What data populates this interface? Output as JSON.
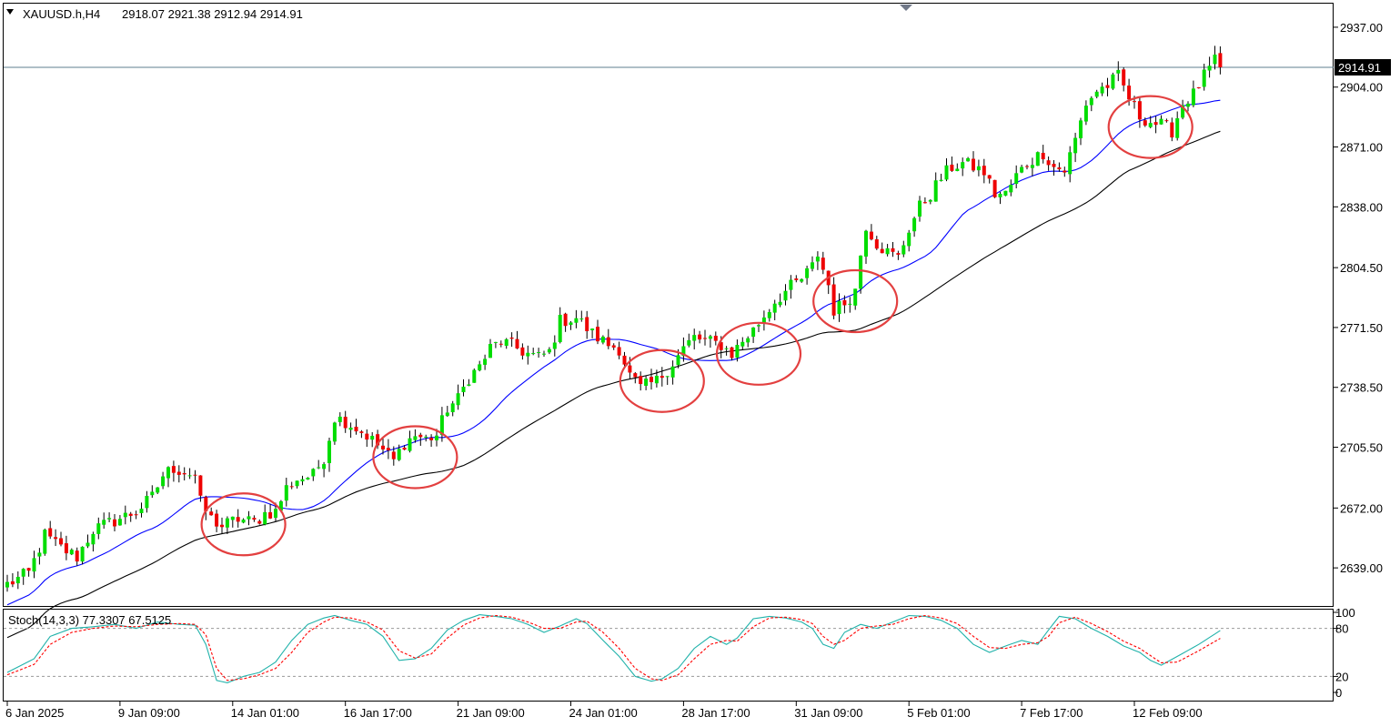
{
  "chart_data": {
    "type": "candlestick",
    "title": "XAUUSD.h,H4",
    "ohlc_label": "2918.07 2921.38 2912.94 2914.91",
    "current_price": 2914.91,
    "current_price_label": "2914.91",
    "y_axis": {
      "range": [
        2618,
        2950
      ],
      "ticks": [
        {
          "value": 2937.0,
          "label": "2937.00"
        },
        {
          "value": 2904.0,
          "label": "2904.00"
        },
        {
          "value": 2871.0,
          "label": "2871.00"
        },
        {
          "value": 2838.0,
          "label": "2838.00"
        },
        {
          "value": 2804.5,
          "label": "2804.50"
        },
        {
          "value": 2771.5,
          "label": "2771.50"
        },
        {
          "value": 2738.5,
          "label": "2738.50"
        },
        {
          "value": 2705.5,
          "label": "2705.50"
        },
        {
          "value": 2672.0,
          "label": "2672.00"
        },
        {
          "value": 2639.0,
          "label": "2639.00"
        }
      ]
    },
    "x_axis": {
      "ticks": [
        {
          "bar": 0,
          "label": "6 Jan 2025"
        },
        {
          "bar": 21,
          "label": "9 Jan 09:00"
        },
        {
          "bar": 42,
          "label": "14 Jan 01:00"
        },
        {
          "bar": 63,
          "label": "16 Jan 17:00"
        },
        {
          "bar": 84,
          "label": "21 Jan 09:00"
        },
        {
          "bar": 105,
          "label": "24 Jan 01:00"
        },
        {
          "bar": 126,
          "label": "28 Jan 17:00"
        },
        {
          "bar": 147,
          "label": "31 Jan 09:00"
        },
        {
          "bar": 168,
          "label": "5 Feb 01:00"
        },
        {
          "bar": 189,
          "label": "7 Feb 17:00"
        },
        {
          "bar": 210,
          "label": "12 Feb 09:00"
        }
      ]
    },
    "price_path": [
      [
        0,
        2630
      ],
      [
        4,
        2636
      ],
      [
        7,
        2657
      ],
      [
        10,
        2650
      ],
      [
        13,
        2645
      ],
      [
        16,
        2660
      ],
      [
        20,
        2665
      ],
      [
        24,
        2670
      ],
      [
        27,
        2678
      ],
      [
        29,
        2690
      ],
      [
        31,
        2694
      ],
      [
        35,
        2690
      ],
      [
        36,
        2675
      ],
      [
        38,
        2666
      ],
      [
        40,
        2662
      ],
      [
        43,
        2666
      ],
      [
        46,
        2664
      ],
      [
        48,
        2669
      ],
      [
        50,
        2670
      ],
      [
        52,
        2683
      ],
      [
        54,
        2688
      ],
      [
        57,
        2690
      ],
      [
        59,
        2700
      ],
      [
        61,
        2722
      ],
      [
        63,
        2720
      ],
      [
        65,
        2716
      ],
      [
        67,
        2712
      ],
      [
        70,
        2704
      ],
      [
        72,
        2698
      ],
      [
        74,
        2708
      ],
      [
        76,
        2712
      ],
      [
        78,
        2710
      ],
      [
        80,
        2712
      ],
      [
        82,
        2727
      ],
      [
        84,
        2732
      ],
      [
        86,
        2744
      ],
      [
        88,
        2750
      ],
      [
        90,
        2760
      ],
      [
        92,
        2764
      ],
      [
        95,
        2760
      ],
      [
        97,
        2757
      ],
      [
        99,
        2755
      ],
      [
        101,
        2758
      ],
      [
        103,
        2775
      ],
      [
        106,
        2777
      ],
      [
        109,
        2768
      ],
      [
        112,
        2762
      ],
      [
        114,
        2760
      ],
      [
        116,
        2745
      ],
      [
        118,
        2738
      ],
      [
        121,
        2742
      ],
      [
        124,
        2752
      ],
      [
        126,
        2760
      ],
      [
        128,
        2766
      ],
      [
        130,
        2764
      ],
      [
        133,
        2762
      ],
      [
        135,
        2757
      ],
      [
        137,
        2764
      ],
      [
        139,
        2770
      ],
      [
        141,
        2778
      ],
      [
        143,
        2786
      ],
      [
        146,
        2794
      ],
      [
        148,
        2798
      ],
      [
        150,
        2805
      ],
      [
        151,
        2812
      ],
      [
        153,
        2795
      ],
      [
        154,
        2781
      ],
      [
        156,
        2785
      ],
      [
        158,
        2792
      ],
      [
        159,
        2812
      ],
      [
        160,
        2828
      ],
      [
        162,
        2818
      ],
      [
        164,
        2813
      ],
      [
        166,
        2810
      ],
      [
        168,
        2826
      ],
      [
        170,
        2838
      ],
      [
        172,
        2845
      ],
      [
        174,
        2854
      ],
      [
        176,
        2860
      ],
      [
        178,
        2862
      ],
      [
        180,
        2860
      ],
      [
        182,
        2857
      ],
      [
        184,
        2845
      ],
      [
        186,
        2845
      ],
      [
        188,
        2855
      ],
      [
        190,
        2862
      ],
      [
        193,
        2868
      ],
      [
        195,
        2860
      ],
      [
        197,
        2858
      ],
      [
        199,
        2875
      ],
      [
        201,
        2895
      ],
      [
        203,
        2902
      ],
      [
        205,
        2905
      ],
      [
        207,
        2910
      ],
      [
        209,
        2898
      ],
      [
        211,
        2888
      ],
      [
        213,
        2885
      ],
      [
        215,
        2883
      ],
      [
        217,
        2880
      ],
      [
        219,
        2895
      ],
      [
        221,
        2900
      ],
      [
        223,
        2910
      ],
      [
        225,
        2918
      ],
      [
        226,
        2914.91
      ]
    ],
    "moving_averages": [
      {
        "name": "ma-fast",
        "color": "#0000ff",
        "period": 20
      },
      {
        "name": "ma-slow",
        "color": "#000000",
        "period": 50
      }
    ],
    "candle_colors": {
      "up": "#00dd00",
      "down": "#ee0000",
      "wick": "#000000"
    },
    "highlight_circles": [
      {
        "bar": 44,
        "price": 2663
      },
      {
        "bar": 76,
        "price": 2700
      },
      {
        "bar": 122,
        "price": 2742
      },
      {
        "bar": 140,
        "price": 2757
      },
      {
        "bar": 158,
        "price": 2786
      },
      {
        "bar": 213,
        "price": 2882
      }
    ],
    "stochastic": {
      "label": "Stoch(14,3,3) 77.3307 67.5125",
      "range": [
        0,
        100
      ],
      "levels": [
        20,
        80
      ],
      "tick_labels": [
        {
          "value": 100,
          "label": "100"
        },
        {
          "value": 80,
          "label": "80"
        },
        {
          "value": 20,
          "label": "20"
        },
        {
          "value": 0,
          "label": "0"
        }
      ],
      "main_color": "#20b2aa",
      "signal_color": "#ff0000",
      "main_path": [
        [
          0,
          25
        ],
        [
          5,
          42
        ],
        [
          8,
          70
        ],
        [
          12,
          80
        ],
        [
          16,
          82
        ],
        [
          20,
          85
        ],
        [
          24,
          80
        ],
        [
          28,
          88
        ],
        [
          32,
          85
        ],
        [
          35,
          84
        ],
        [
          37,
          60
        ],
        [
          39,
          15
        ],
        [
          41,
          12
        ],
        [
          44,
          20
        ],
        [
          47,
          25
        ],
        [
          50,
          38
        ],
        [
          53,
          65
        ],
        [
          56,
          85
        ],
        [
          59,
          93
        ],
        [
          61,
          96
        ],
        [
          64,
          90
        ],
        [
          67,
          85
        ],
        [
          70,
          70
        ],
        [
          73,
          40
        ],
        [
          76,
          42
        ],
        [
          79,
          55
        ],
        [
          82,
          78
        ],
        [
          85,
          90
        ],
        [
          88,
          97
        ],
        [
          91,
          95
        ],
        [
          94,
          92
        ],
        [
          97,
          85
        ],
        [
          100,
          75
        ],
        [
          103,
          83
        ],
        [
          106,
          92
        ],
        [
          108,
          86
        ],
        [
          111,
          65
        ],
        [
          114,
          45
        ],
        [
          117,
          20
        ],
        [
          120,
          14
        ],
        [
          122,
          17
        ],
        [
          125,
          30
        ],
        [
          128,
          55
        ],
        [
          131,
          70
        ],
        [
          134,
          60
        ],
        [
          136,
          68
        ],
        [
          139,
          92
        ],
        [
          142,
          95
        ],
        [
          145,
          93
        ],
        [
          148,
          88
        ],
        [
          150,
          80
        ],
        [
          152,
          60
        ],
        [
          154,
          55
        ],
        [
          156,
          75
        ],
        [
          159,
          85
        ],
        [
          162,
          80
        ],
        [
          165,
          88
        ],
        [
          168,
          96
        ],
        [
          171,
          95
        ],
        [
          174,
          90
        ],
        [
          177,
          80
        ],
        [
          180,
          60
        ],
        [
          183,
          50
        ],
        [
          186,
          58
        ],
        [
          189,
          65
        ],
        [
          192,
          60
        ],
        [
          194,
          78
        ],
        [
          196,
          95
        ],
        [
          199,
          92
        ],
        [
          202,
          80
        ],
        [
          205,
          70
        ],
        [
          208,
          58
        ],
        [
          211,
          50
        ],
        [
          213,
          40
        ],
        [
          215,
          34
        ],
        [
          218,
          45
        ],
        [
          222,
          60
        ],
        [
          226,
          77.3307
        ]
      ],
      "signal_path": [
        [
          0,
          22
        ],
        [
          5,
          35
        ],
        [
          8,
          60
        ],
        [
          12,
          75
        ],
        [
          16,
          80
        ],
        [
          20,
          83
        ],
        [
          24,
          82
        ],
        [
          28,
          85
        ],
        [
          32,
          86
        ],
        [
          35,
          85
        ],
        [
          37,
          72
        ],
        [
          39,
          30
        ],
        [
          41,
          15
        ],
        [
          44,
          17
        ],
        [
          47,
          22
        ],
        [
          50,
          30
        ],
        [
          53,
          50
        ],
        [
          56,
          75
        ],
        [
          59,
          88
        ],
        [
          61,
          94
        ],
        [
          64,
          93
        ],
        [
          67,
          88
        ],
        [
          70,
          78
        ],
        [
          73,
          52
        ],
        [
          76,
          43
        ],
        [
          79,
          48
        ],
        [
          82,
          68
        ],
        [
          85,
          84
        ],
        [
          88,
          93
        ],
        [
          91,
          96
        ],
        [
          94,
          94
        ],
        [
          97,
          88
        ],
        [
          100,
          80
        ],
        [
          103,
          80
        ],
        [
          106,
          88
        ],
        [
          108,
          89
        ],
        [
          111,
          75
        ],
        [
          114,
          55
        ],
        [
          117,
          30
        ],
        [
          120,
          17
        ],
        [
          122,
          15
        ],
        [
          125,
          22
        ],
        [
          128,
          42
        ],
        [
          131,
          60
        ],
        [
          134,
          65
        ],
        [
          136,
          64
        ],
        [
          139,
          82
        ],
        [
          142,
          93
        ],
        [
          145,
          94
        ],
        [
          148,
          91
        ],
        [
          150,
          86
        ],
        [
          152,
          70
        ],
        [
          154,
          60
        ],
        [
          156,
          65
        ],
        [
          159,
          80
        ],
        [
          162,
          83
        ],
        [
          165,
          85
        ],
        [
          168,
          92
        ],
        [
          171,
          96
        ],
        [
          174,
          93
        ],
        [
          177,
          86
        ],
        [
          180,
          70
        ],
        [
          183,
          56
        ],
        [
          186,
          55
        ],
        [
          189,
          60
        ],
        [
          192,
          62
        ],
        [
          194,
          70
        ],
        [
          196,
          87
        ],
        [
          199,
          94
        ],
        [
          202,
          86
        ],
        [
          205,
          76
        ],
        [
          208,
          64
        ],
        [
          211,
          55
        ],
        [
          213,
          46
        ],
        [
          215,
          37
        ],
        [
          218,
          38
        ],
        [
          222,
          52
        ],
        [
          226,
          67.5125
        ]
      ]
    }
  }
}
